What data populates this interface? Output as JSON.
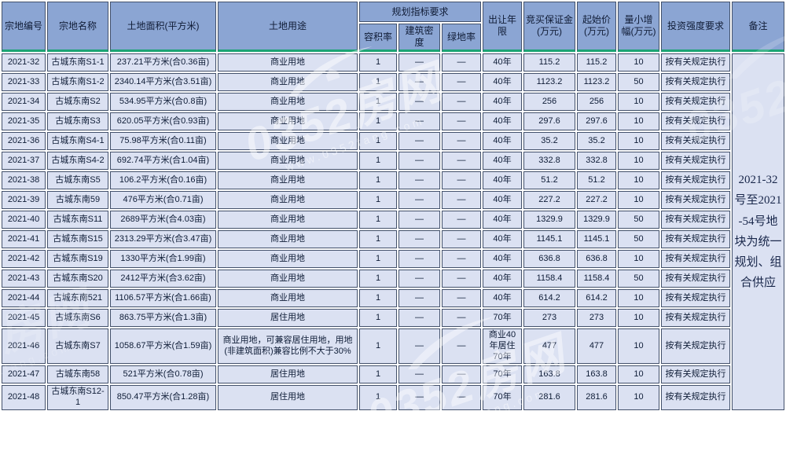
{
  "table": {
    "headers": {
      "parcel_id": "宗地编号",
      "parcel_name": "宗地名称",
      "land_area": "土地面积(平方米)",
      "land_use": "土地用途",
      "planning": "规划指标要求",
      "far": "容积率",
      "building_density": "建筑密度",
      "green_rate": "绿地率",
      "term": "出让年限",
      "deposit": "竞买保证金(万元)",
      "start_price": "起始价(万元)",
      "min_increment": "量小增幅(万元)",
      "investment": "投资强度要求",
      "remark": "备注"
    },
    "rows": [
      {
        "id": "2021-32",
        "name": "古城东南S1-1",
        "area": "237.21平方米(合0.36亩)",
        "use": "商业用地",
        "far": "1",
        "density": "—",
        "green": "—",
        "term": "40年",
        "deposit": "115.2",
        "start_price": "115.2",
        "increment": "10",
        "investment": "按有关规定执行"
      },
      {
        "id": "2021-33",
        "name": "古城东南S1-2",
        "area": "2340.14平方米(合3.51亩)",
        "use": "商业用地",
        "far": "1",
        "density": "—",
        "green": "—",
        "term": "40年",
        "deposit": "1123.2",
        "start_price": "1123.2",
        "increment": "50",
        "investment": "按有关规定执行"
      },
      {
        "id": "2021-34",
        "name": "古城东南S2",
        "area": "534.95平方米(合0.8亩)",
        "use": "商业用地",
        "far": "1",
        "density": "—",
        "green": "—",
        "term": "40年",
        "deposit": "256",
        "start_price": "256",
        "increment": "10",
        "investment": "按有关规定执行"
      },
      {
        "id": "2021-35",
        "name": "古城东南S3",
        "area": "620.05平方米(合0.93亩)",
        "use": "商业用地",
        "far": "1",
        "density": "—",
        "green": "—",
        "term": "40年",
        "deposit": "297.6",
        "start_price": "297.6",
        "increment": "10",
        "investment": "按有关规定执行"
      },
      {
        "id": "2021-36",
        "name": "古城东南S4-1",
        "area": "75.98平方米(合0.11亩)",
        "use": "商业用地",
        "far": "1",
        "density": "—",
        "green": "—",
        "term": "40年",
        "deposit": "35.2",
        "start_price": "35.2",
        "increment": "10",
        "investment": "按有关规定执行"
      },
      {
        "id": "2021-37",
        "name": "古城东南S4-2",
        "area": "692.74平方米(合1.04亩)",
        "use": "商业用地",
        "far": "1",
        "density": "—",
        "green": "—",
        "term": "40年",
        "deposit": "332.8",
        "start_price": "332.8",
        "increment": "10",
        "investment": "按有关规定执行"
      },
      {
        "id": "2021-38",
        "name": "古城东南S5",
        "area": "106.2平方米(合0.16亩)",
        "use": "商业用地",
        "far": "1",
        "density": "—",
        "green": "—",
        "term": "40年",
        "deposit": "51.2",
        "start_price": "51.2",
        "increment": "10",
        "investment": "按有关规定执行"
      },
      {
        "id": "2021-39",
        "name": "古城东南59",
        "area": "476平方米(合0.71亩)",
        "use": "商业用地",
        "far": "1",
        "density": "—",
        "green": "—",
        "term": "40年",
        "deposit": "227.2",
        "start_price": "227.2",
        "increment": "10",
        "investment": "按有关规定执行"
      },
      {
        "id": "2021-40",
        "name": "古城东南S11",
        "area": "2689平方米(合4.03亩)",
        "use": "商业用地",
        "far": "1",
        "density": "—",
        "green": "—",
        "term": "40年",
        "deposit": "1329.9",
        "start_price": "1329.9",
        "increment": "50",
        "investment": "按有关规定执行"
      },
      {
        "id": "2021-41",
        "name": "古城东南S15",
        "area": "2313.29平方米(合3.47亩)",
        "use": "商业用地",
        "far": "1",
        "density": "—",
        "green": "—",
        "term": "40年",
        "deposit": "1145.1",
        "start_price": "1145.1",
        "increment": "50",
        "investment": "按有关规定执行"
      },
      {
        "id": "2021-42",
        "name": "古城东南S19",
        "area": "1330平方米(合1.99亩)",
        "use": "商业用地",
        "far": "1",
        "density": "—",
        "green": "—",
        "term": "40年",
        "deposit": "636.8",
        "start_price": "636.8",
        "increment": "10",
        "investment": "按有关规定执行"
      },
      {
        "id": "2021-43",
        "name": "古城东南S20",
        "area": "2412平方米(合3.62亩)",
        "use": "商业用地",
        "far": "1",
        "density": "—",
        "green": "—",
        "term": "40年",
        "deposit": "1158.4",
        "start_price": "1158.4",
        "increment": "50",
        "investment": "按有关规定执行"
      },
      {
        "id": "2021-44",
        "name": "古城东南521",
        "area": "1106.57平方米(合1.66亩)",
        "use": "商业用地",
        "far": "1",
        "density": "—",
        "green": "—",
        "term": "40年",
        "deposit": "614.2",
        "start_price": "614.2",
        "increment": "10",
        "investment": "按有关规定执行"
      },
      {
        "id": "2021-45",
        "name": "古城东南S6",
        "area": "863.75平方米(合1.3亩)",
        "use": "居住用地",
        "far": "1",
        "density": "—",
        "green": "—",
        "term": "70年",
        "deposit": "273",
        "start_price": "273",
        "increment": "10",
        "investment": "按有关规定执行"
      },
      {
        "id": "2021-46",
        "name": "古城东南S7",
        "area": "1058.67平方米(合1.59亩)",
        "use": "商业用地，可兼容居住用地，用地(非建筑面积)兼容比例不大于30%",
        "far": "1",
        "density": "—",
        "green": "—",
        "term": "商业40年居住70年",
        "deposit": "477",
        "start_price": "477",
        "increment": "10",
        "investment": "按有关规定执行"
      },
      {
        "id": "2021-47",
        "name": "古城东南58",
        "area": "521平方米(合0.78亩)",
        "use": "居住用地",
        "far": "1",
        "density": "—",
        "green": "—",
        "term": "70年",
        "deposit": "163.8",
        "start_price": "163.8",
        "increment": "10",
        "investment": "按有关规定执行"
      },
      {
        "id": "2021-48",
        "name": "古城东南S12-1",
        "area": "850.47平方米(合1.28亩)",
        "use": "居住用地",
        "far": "1",
        "density": "—",
        "green": "—",
        "term": "70年",
        "deposit": "281.6",
        "start_price": "281.6",
        "increment": "10",
        "investment": "按有关规定执行"
      }
    ],
    "remark": "2021-32号至2021-54号地块为统一规划、组合供应"
  },
  "watermark": {
    "brand": "0352房网",
    "url": "www.0352fang.com"
  },
  "colors": {
    "header_bg": "#8ba5d3",
    "row_bg": "#dbe1f2",
    "border": "#43516b",
    "accent_green": "#1ba474"
  }
}
